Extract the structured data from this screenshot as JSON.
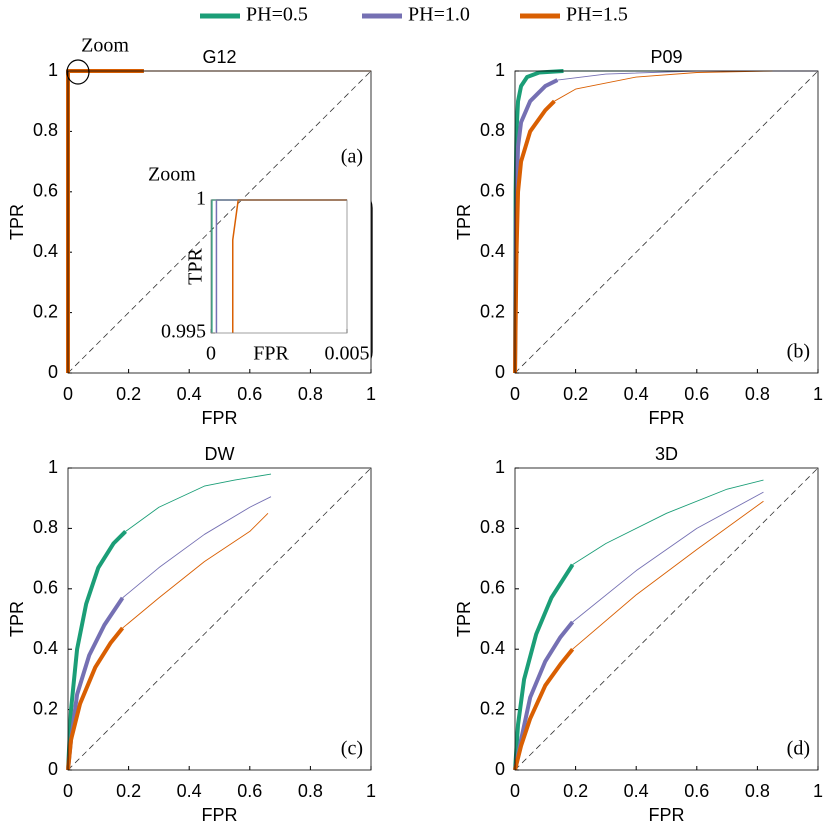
{
  "legend": [
    {
      "name": "PH=0.5",
      "color": "#1b9e77"
    },
    {
      "name": "PH=1.0",
      "color": "#7570b3"
    },
    {
      "name": "PH=1.5",
      "color": "#d95f02"
    }
  ],
  "chart_data": [
    {
      "type": "line",
      "title": "G12",
      "xlabel": "FPR",
      "ylabel": "TPR",
      "annotation": "(a)",
      "zoom_label": "Zoom",
      "xlim": [
        0,
        1
      ],
      "ylim": [
        0,
        1
      ],
      "xticks": [
        0,
        0.2,
        0.4,
        0.6,
        0.8,
        1
      ],
      "yticks": [
        0,
        0.2,
        0.4,
        0.6,
        0.8,
        1
      ],
      "diagonal": true,
      "series": [
        {
          "color": "#1b9e77",
          "bold_until": 0.25,
          "x": [
            0,
            0,
            0.25,
            1
          ],
          "values": [
            0,
            1,
            1,
            1
          ]
        },
        {
          "color": "#7570b3",
          "bold_until": 0.25,
          "x": [
            0,
            0,
            0.25,
            1
          ],
          "values": [
            0,
            1,
            1,
            1
          ]
        },
        {
          "color": "#d95f02",
          "bold_until": 0.25,
          "x": [
            0,
            0,
            0.25,
            1
          ],
          "values": [
            0,
            1,
            1,
            1
          ]
        }
      ]
    },
    {
      "type": "line",
      "title": "P09",
      "xlabel": "FPR",
      "ylabel": "TPR",
      "annotation": "(b)",
      "xlim": [
        0,
        1
      ],
      "ylim": [
        0,
        1
      ],
      "xticks": [
        0,
        0.2,
        0.4,
        0.6,
        0.8,
        1
      ],
      "yticks": [
        0,
        0.2,
        0.4,
        0.6,
        0.8,
        1
      ],
      "diagonal": true,
      "series": [
        {
          "color": "#1b9e77",
          "bold_until": 0.16,
          "x": [
            0,
            0.002,
            0.005,
            0.01,
            0.02,
            0.04,
            0.08,
            0.16,
            0.5,
            1
          ],
          "values": [
            0,
            0.6,
            0.8,
            0.9,
            0.95,
            0.98,
            0.995,
            1,
            1,
            1
          ]
        },
        {
          "color": "#7570b3",
          "bold_until": 0.14,
          "x": [
            0,
            0.003,
            0.01,
            0.02,
            0.05,
            0.1,
            0.14,
            0.3,
            0.6,
            1
          ],
          "values": [
            0,
            0.5,
            0.75,
            0.83,
            0.9,
            0.95,
            0.97,
            0.99,
            1,
            1
          ]
        },
        {
          "color": "#d95f02",
          "bold_until": 0.13,
          "x": [
            0,
            0.005,
            0.01,
            0.02,
            0.05,
            0.1,
            0.13,
            0.2,
            0.4,
            0.6,
            0.85
          ],
          "values": [
            0,
            0.4,
            0.6,
            0.7,
            0.8,
            0.87,
            0.9,
            0.94,
            0.98,
            0.995,
            1
          ]
        }
      ]
    },
    {
      "type": "line",
      "title": "DW",
      "xlabel": "FPR",
      "ylabel": "TPR",
      "annotation": "(c)",
      "xlim": [
        0,
        1
      ],
      "ylim": [
        0,
        1
      ],
      "xticks": [
        0,
        0.2,
        0.4,
        0.6,
        0.8,
        1
      ],
      "yticks": [
        0,
        0.2,
        0.4,
        0.6,
        0.8,
        1
      ],
      "diagonal": true,
      "series": [
        {
          "color": "#1b9e77",
          "bold_until": 0.19,
          "x": [
            0,
            0.01,
            0.03,
            0.06,
            0.1,
            0.15,
            0.19,
            0.3,
            0.45,
            0.55,
            0.67
          ],
          "values": [
            0,
            0.2,
            0.4,
            0.55,
            0.67,
            0.75,
            0.79,
            0.87,
            0.94,
            0.96,
            0.98
          ]
        },
        {
          "color": "#7570b3",
          "bold_until": 0.18,
          "x": [
            0,
            0.01,
            0.03,
            0.07,
            0.12,
            0.18,
            0.3,
            0.45,
            0.6,
            0.67
          ],
          "values": [
            0,
            0.1,
            0.25,
            0.38,
            0.48,
            0.57,
            0.67,
            0.78,
            0.87,
            0.905
          ]
        },
        {
          "color": "#d95f02",
          "bold_until": 0.18,
          "x": [
            0,
            0.01,
            0.04,
            0.09,
            0.14,
            0.18,
            0.3,
            0.45,
            0.6,
            0.66
          ],
          "values": [
            0,
            0.1,
            0.22,
            0.34,
            0.42,
            0.47,
            0.57,
            0.69,
            0.79,
            0.85
          ]
        }
      ]
    },
    {
      "type": "line",
      "title": "3D",
      "xlabel": "FPR",
      "ylabel": "TPR",
      "annotation": "(d)",
      "xlim": [
        0,
        1
      ],
      "ylim": [
        0,
        1
      ],
      "xticks": [
        0,
        0.2,
        0.4,
        0.6,
        0.8,
        1
      ],
      "yticks": [
        0,
        0.2,
        0.4,
        0.6,
        0.8,
        1
      ],
      "diagonal": true,
      "series": [
        {
          "color": "#1b9e77",
          "bold_until": 0.19,
          "x": [
            0,
            0.01,
            0.03,
            0.07,
            0.12,
            0.19,
            0.3,
            0.5,
            0.7,
            0.82
          ],
          "values": [
            0,
            0.15,
            0.3,
            0.45,
            0.57,
            0.68,
            0.75,
            0.85,
            0.93,
            0.96
          ]
        },
        {
          "color": "#7570b3",
          "bold_until": 0.19,
          "x": [
            0,
            0.02,
            0.05,
            0.1,
            0.15,
            0.19,
            0.4,
            0.6,
            0.82
          ],
          "values": [
            0,
            0.1,
            0.24,
            0.36,
            0.44,
            0.49,
            0.66,
            0.8,
            0.92
          ]
        },
        {
          "color": "#d95f02",
          "bold_until": 0.19,
          "x": [
            0,
            0.02,
            0.05,
            0.1,
            0.15,
            0.19,
            0.4,
            0.6,
            0.82
          ],
          "values": [
            0,
            0.08,
            0.17,
            0.28,
            0.35,
            0.4,
            0.58,
            0.73,
            0.89
          ]
        }
      ]
    },
    {
      "type": "line",
      "title": "Zoom",
      "xlabel": "FPR",
      "ylabel": "TPR",
      "xlim": [
        0,
        0.005
      ],
      "ylim": [
        0.995,
        1
      ],
      "xticks": [
        0,
        0.005
      ],
      "yticks": [
        0.995,
        1
      ],
      "series": [
        {
          "color": "#1b9e77",
          "x": [
            3e-05,
            3e-05,
            0.005
          ],
          "values": [
            0.995,
            1,
            1
          ]
        },
        {
          "color": "#7570b3",
          "x": [
            0.0002,
            0.0002,
            0.005
          ],
          "values": [
            0.995,
            1,
            1
          ]
        },
        {
          "color": "#d95f02",
          "x": [
            0.0008,
            0.0008,
            0.001,
            0.005
          ],
          "values": [
            0.995,
            0.9985,
            1,
            1
          ]
        }
      ]
    }
  ]
}
